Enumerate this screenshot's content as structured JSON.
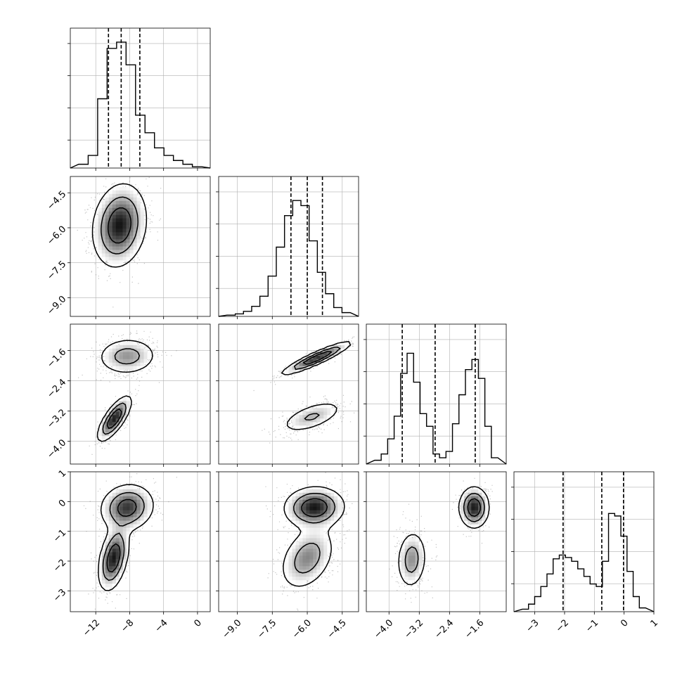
{
  "figure": {
    "type": "corner_plot",
    "dimensions": 4,
    "colors": {
      "hist": "#000000",
      "points": "#555555",
      "contour": "#000000",
      "grid": "#b0b0b0"
    }
  },
  "chart_data": {
    "type": "corner",
    "grid": true,
    "parameters": [
      {
        "index": 0,
        "range": [
          -15,
          1.5
        ],
        "ticks": [
          -12,
          -8,
          -4,
          0
        ],
        "tick_labels": [
          "−12",
          "−8",
          "−4",
          "0"
        ],
        "quantiles": [
          -10.5,
          -9.0,
          -6.8
        ],
        "histogram": [
          0.03,
          0.1,
          0.55,
          0.95,
          1.0,
          0.82,
          0.42,
          0.28,
          0.16,
          0.1,
          0.06,
          0.03,
          0.01
        ]
      },
      {
        "index": 1,
        "range": [
          -9.8,
          -3.8
        ],
        "ticks": [
          -9.0,
          -7.5,
          -6.0,
          -4.5
        ],
        "tick_labels": [
          "−9.0",
          "−7.5",
          "−6.0",
          "−4.5"
        ],
        "quantiles": [
          -6.7,
          -6.0,
          -5.35
        ],
        "histogram": [
          0.01,
          0.02,
          0.04,
          0.08,
          0.16,
          0.32,
          0.55,
          0.8,
          0.92,
          0.88,
          0.6,
          0.35,
          0.18,
          0.07,
          0.03
        ]
      },
      {
        "index": 2,
        "range": [
          -4.6,
          -0.9
        ],
        "ticks": [
          -4.0,
          -3.2,
          -2.4,
          -1.6
        ],
        "tick_labels": [
          "−4.0",
          "−3.2",
          "−2.4",
          "−1.6"
        ],
        "quantiles": [
          -3.65,
          -2.78,
          -1.72
        ],
        "histogram": [
          0.03,
          0.08,
          0.2,
          0.38,
          0.72,
          0.88,
          0.65,
          0.4,
          0.3,
          0.08,
          0.05,
          0.1,
          0.32,
          0.55,
          0.75,
          0.83,
          0.68,
          0.3,
          0.05
        ]
      },
      {
        "index": 3,
        "range": [
          -3.7,
          1.0
        ],
        "ticks": [
          -3,
          -2,
          -1,
          0,
          1
        ],
        "tick_labels": [
          "−3",
          "−2",
          "−1",
          "0",
          "1"
        ],
        "quantiles": [
          -2.05,
          -0.75,
          -0.02
        ],
        "histogram": [
          0.02,
          0.06,
          0.12,
          0.2,
          0.3,
          0.42,
          0.45,
          0.43,
          0.4,
          0.34,
          0.28,
          0.22,
          0.2,
          0.4,
          0.78,
          0.76,
          0.6,
          0.32,
          0.12,
          0.03
        ]
      }
    ],
    "pairs": [
      {
        "x": 0,
        "y": 1,
        "modes": [
          {
            "mx": -9.2,
            "my": -5.9,
            "sx": 1.6,
            "sy": 0.9,
            "rho": 0.15,
            "w": 1.0
          }
        ]
      },
      {
        "x": 0,
        "y": 2,
        "modes": [
          {
            "mx": -8.3,
            "my": -1.75,
            "sx": 1.8,
            "sy": 0.25,
            "rho": 0.05,
            "w": 0.55
          },
          {
            "mx": -9.8,
            "my": -3.4,
            "sx": 1.0,
            "sy": 0.3,
            "rho": 0.75,
            "w": 0.45
          }
        ]
      },
      {
        "x": 0,
        "y": 3,
        "modes": [
          {
            "mx": -8.3,
            "my": -0.2,
            "sx": 1.6,
            "sy": 0.4,
            "rho": 0.1,
            "w": 0.55
          },
          {
            "mx": -9.9,
            "my": -1.9,
            "sx": 0.9,
            "sy": 0.55,
            "rho": 0.4,
            "w": 0.45
          }
        ]
      },
      {
        "x": 1,
        "y": 2,
        "modes": [
          {
            "mx": -5.6,
            "my": -1.8,
            "sx": 0.75,
            "sy": 0.22,
            "rho": 0.92,
            "w": 0.55
          },
          {
            "mx": -5.8,
            "my": -3.35,
            "sx": 0.7,
            "sy": 0.22,
            "rho": 0.6,
            "w": 0.45
          }
        ]
      },
      {
        "x": 1,
        "y": 3,
        "modes": [
          {
            "mx": -5.7,
            "my": -0.2,
            "sx": 0.65,
            "sy": 0.35,
            "rho": 0.05,
            "w": 0.55
          },
          {
            "mx": -6.0,
            "my": -1.9,
            "sx": 0.6,
            "sy": 0.55,
            "rho": 0.35,
            "w": 0.45
          }
        ]
      },
      {
        "x": 2,
        "y": 3,
        "modes": [
          {
            "mx": -1.75,
            "my": -0.2,
            "sx": 0.2,
            "sy": 0.35,
            "rho": 0.0,
            "w": 0.55
          },
          {
            "mx": -3.4,
            "my": -1.95,
            "sx": 0.2,
            "sy": 0.5,
            "rho": 0.1,
            "w": 0.45
          }
        ]
      }
    ]
  }
}
